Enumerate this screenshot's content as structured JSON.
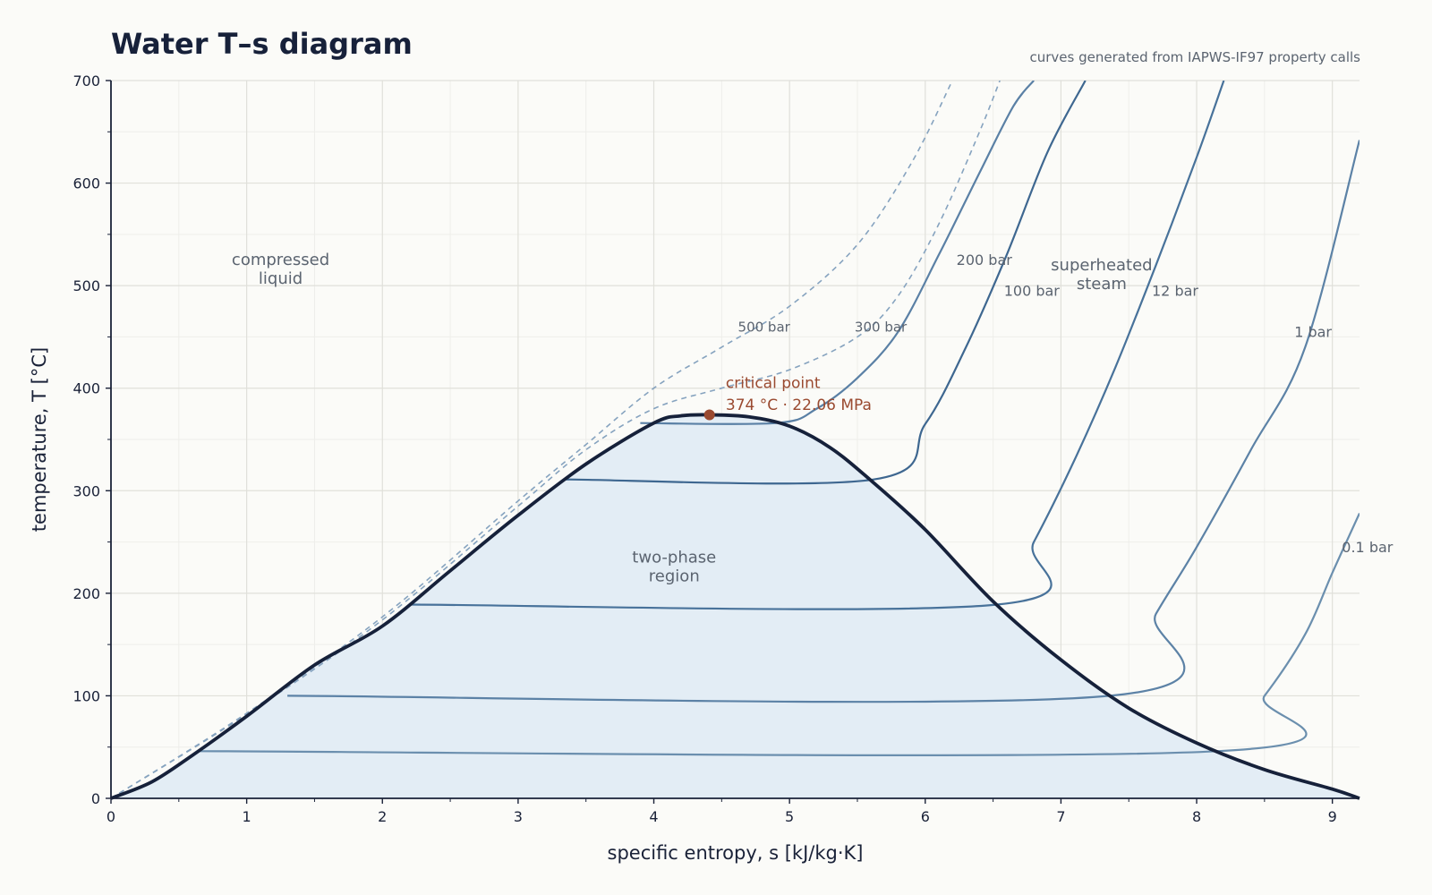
{
  "chart_data": {
    "type": "line",
    "title": "Water T–s diagram",
    "subtitle": "curves generated from IAPWS-IF97 property calls",
    "xlabel": "specific entropy, s  [kJ/kg·K]",
    "ylabel": "temperature, T  [°C]",
    "xlim": [
      0,
      9.2
    ],
    "ylim": [
      0,
      700
    ],
    "grid": true,
    "x_ticks": [
      "0",
      "1",
      "2",
      "3",
      "4",
      "5",
      "6",
      "7",
      "8",
      "9"
    ],
    "y_ticks": [
      "0",
      "100",
      "200",
      "300",
      "400",
      "500",
      "600",
      "700"
    ],
    "saturation_dome": {
      "name": "saturation dome",
      "color": "#16213a",
      "fill": "#e3edf5",
      "points": [
        [
          0,
          0
        ],
        [
          0.3,
          16
        ],
        [
          0.6,
          42
        ],
        [
          1.0,
          80
        ],
        [
          1.5,
          130
        ],
        [
          2.0,
          168
        ],
        [
          2.5,
          222
        ],
        [
          3.0,
          276
        ],
        [
          3.5,
          326
        ],
        [
          4.0,
          366
        ],
        [
          4.2,
          373
        ],
        [
          4.41,
          374
        ],
        [
          4.7,
          372
        ],
        [
          5.0,
          363
        ],
        [
          5.3,
          342
        ],
        [
          5.6,
          310
        ],
        [
          6.0,
          262
        ],
        [
          6.5,
          192
        ],
        [
          7.0,
          135
        ],
        [
          7.5,
          88
        ],
        [
          8.0,
          54
        ],
        [
          8.5,
          28
        ],
        [
          9.0,
          9
        ],
        [
          9.2,
          0
        ]
      ]
    },
    "critical_point": {
      "s": 4.41,
      "T": 374,
      "label_line1": "critical point",
      "label_line2": "374 °C · 22.06 MPa",
      "color": "#9a4a30"
    },
    "isobars": [
      {
        "label": "0.1 bar",
        "dashed": false,
        "color": "#6b8fae",
        "label_at": [
          9.07,
          240
        ],
        "points": [
          [
            0.65,
            46
          ],
          [
            8.15,
            46
          ],
          [
            8.5,
            100
          ],
          [
            8.8,
            160
          ],
          [
            9.0,
            220
          ],
          [
            9.2,
            278
          ]
        ]
      },
      {
        "label": "1 bar",
        "dashed": false,
        "color": "#5c82a6",
        "label_at": [
          8.72,
          450
        ],
        "points": [
          [
            1.3,
            100
          ],
          [
            7.36,
            100
          ],
          [
            7.7,
            180
          ],
          [
            8.0,
            245
          ],
          [
            8.4,
            340
          ],
          [
            8.8,
            440
          ],
          [
            9.2,
            642
          ]
        ]
      },
      {
        "label": "12 bar",
        "dashed": false,
        "color": "#48729a",
        "label_at": [
          7.67,
          490
        ],
        "points": [
          [
            2.2,
            189
          ],
          [
            6.53,
            189
          ],
          [
            6.8,
            250
          ],
          [
            7.1,
            330
          ],
          [
            7.4,
            420
          ],
          [
            7.7,
            520
          ],
          [
            8.0,
            625
          ],
          [
            8.2,
            700
          ]
        ]
      },
      {
        "label": "100 bar",
        "dashed": false,
        "color": "#3e6790",
        "label_at": [
          6.58,
          490
        ],
        "points": [
          [
            3.35,
            311
          ],
          [
            5.62,
            311
          ],
          [
            6.0,
            365
          ],
          [
            6.3,
            440
          ],
          [
            6.6,
            530
          ],
          [
            6.9,
            630
          ],
          [
            7.18,
            700
          ]
        ]
      },
      {
        "label": "200 bar",
        "dashed": false,
        "color": "#5a80a5",
        "label_at": [
          6.23,
          520
        ],
        "points": [
          [
            3.9,
            366
          ],
          [
            4.9,
            366
          ],
          [
            5.2,
            380
          ],
          [
            5.5,
            410
          ],
          [
            5.8,
            455
          ],
          [
            6.1,
            530
          ],
          [
            6.4,
            610
          ],
          [
            6.65,
            675
          ],
          [
            6.8,
            700
          ]
        ]
      },
      {
        "label": "300 bar",
        "dashed": true,
        "color": "#86a3bf",
        "label_at": [
          5.48,
          455
        ],
        "points": [
          [
            0,
            0
          ],
          [
            1.0,
            82
          ],
          [
            2.0,
            174
          ],
          [
            3.0,
            285
          ],
          [
            3.5,
            340
          ],
          [
            4.0,
            380
          ],
          [
            4.5,
            400
          ],
          [
            5.0,
            418
          ],
          [
            5.5,
            450
          ],
          [
            5.8,
            490
          ],
          [
            6.1,
            560
          ],
          [
            6.4,
            650
          ],
          [
            6.55,
            700
          ]
        ]
      },
      {
        "label": "500 bar",
        "dashed": true,
        "color": "#86a3bf",
        "label_at": [
          4.62,
          455
        ],
        "points": [
          [
            0,
            0
          ],
          [
            1.0,
            83
          ],
          [
            2.0,
            177
          ],
          [
            3.0,
            290
          ],
          [
            3.5,
            345
          ],
          [
            4.0,
            400
          ],
          [
            4.5,
            440
          ],
          [
            5.0,
            480
          ],
          [
            5.5,
            540
          ],
          [
            5.9,
            620
          ],
          [
            6.2,
            700
          ]
        ]
      }
    ],
    "region_labels": [
      {
        "lines": [
          "compressed",
          "liquid"
        ],
        "at": [
          1.25,
          520
        ]
      },
      {
        "lines": [
          "two-phase",
          "region"
        ],
        "at": [
          4.15,
          230
        ]
      },
      {
        "lines": [
          "superheated",
          "steam"
        ],
        "at": [
          7.3,
          515
        ]
      }
    ]
  }
}
